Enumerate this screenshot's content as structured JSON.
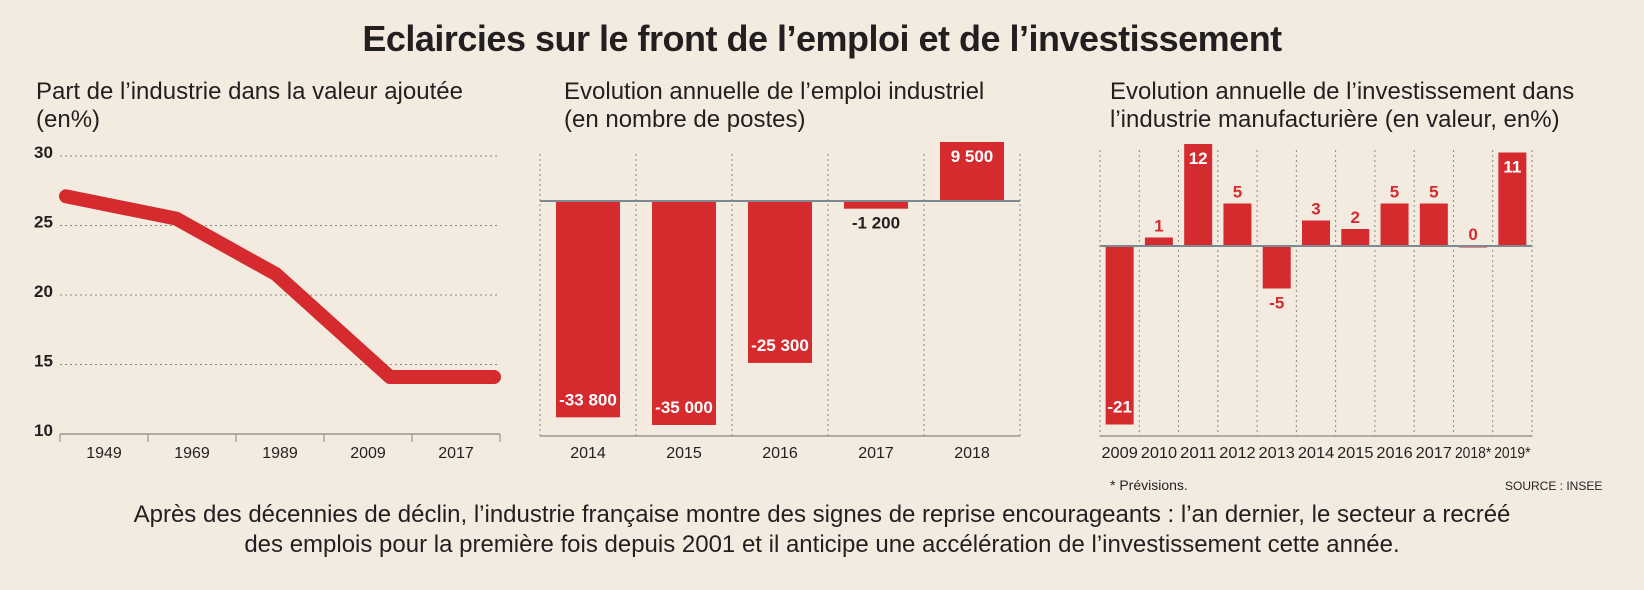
{
  "title": "Eclaircies sur le front de l’emploi et de l’investissement",
  "chart_data": [
    {
      "type": "line",
      "title": "Part de l’industrie dans la valeur ajoutée (en%)",
      "x": [
        "1949",
        "1969",
        "1989",
        "2009",
        "2017"
      ],
      "values": [
        27.1,
        25.5,
        21.5,
        14.1,
        14.1
      ],
      "ylim": [
        10,
        30
      ],
      "yticks": [
        "10",
        "15",
        "20",
        "25",
        "30"
      ],
      "color": "#d52b2f"
    },
    {
      "type": "bar",
      "title": "Evolution annuelle de l’emploi industriel (en nombre de postes)",
      "categories": [
        "2014",
        "2015",
        "2016",
        "2017",
        "2018"
      ],
      "values": [
        -33800,
        -35000,
        -25300,
        -1200,
        9500
      ],
      "labels": [
        "-33 800",
        "-35 000",
        "-25 300",
        "-1 200",
        "9 500"
      ],
      "ylim": [
        -36000,
        10000
      ],
      "color": "#d52b2f"
    },
    {
      "type": "bar",
      "title": "Evolution annuelle de l’investissement dans l’industrie manufacturière (en valeur, en%)",
      "categories": [
        "2009",
        "2010",
        "2011",
        "2012",
        "2013",
        "2014",
        "2015",
        "2016",
        "2017",
        "2018*",
        "2019*"
      ],
      "values": [
        -21,
        1,
        12,
        5,
        -5,
        3,
        2,
        5,
        5,
        0,
        11
      ],
      "labels": [
        "-21",
        "1",
        "12",
        "5",
        "-5",
        "3",
        "2",
        "5",
        "5",
        "0",
        "11"
      ],
      "ylim": [
        -22,
        12
      ],
      "color": "#d52b2f"
    }
  ],
  "panels": {
    "p1_title_line1": "Part de l’industrie dans la valeur ajoutée",
    "p1_title_line2": "(en%)",
    "p2_title_line1": "Evolution annuelle de l’emploi industriel",
    "p2_title_line2": "(en nombre de postes)",
    "p3_title_line1": "Evolution annuelle de l’investissement dans",
    "p3_title_line2": "l’industrie manufacturière (en valeur, en%)"
  },
  "footnote": "* Prévisions.",
  "source": "SOURCE : INSEE",
  "caption_line1": "Après des décennies de déclin, l’industrie française montre des signes de reprise encourageants : l’an dernier, le secteur a recréé",
  "caption_line2": "des emplois pour la première fois depuis 2001 et il anticipe une accélération de l’investissement cette année."
}
